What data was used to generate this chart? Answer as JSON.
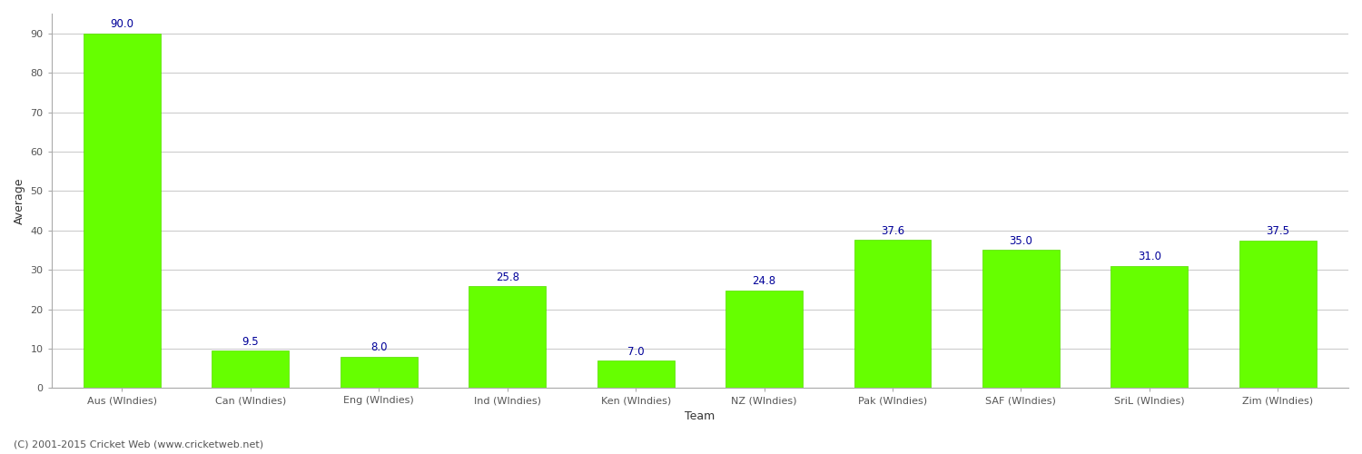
{
  "categories": [
    "Aus (WIndies)",
    "Can (WIndies)",
    "Eng (WIndies)",
    "Ind (WIndies)",
    "Ken (WIndies)",
    "NZ (WIndies)",
    "Pak (WIndies)",
    "SAF (WIndies)",
    "SriL (WIndies)",
    "Zim (WIndies)"
  ],
  "values": [
    90.0,
    9.5,
    8.0,
    25.8,
    7.0,
    24.8,
    37.6,
    35.0,
    31.0,
    37.5
  ],
  "bar_color": "#66ff00",
  "bar_edge_color": "#55dd00",
  "xlabel": "Team",
  "ylabel": "Average",
  "ylim": [
    0,
    95
  ],
  "yticks": [
    0,
    10,
    20,
    30,
    40,
    50,
    60,
    70,
    80,
    90
  ],
  "label_color": "#000099",
  "label_fontsize": 8.5,
  "axis_label_fontsize": 9,
  "tick_fontsize": 8,
  "grid_color": "#cccccc",
  "background_color": "#ffffff",
  "footer_text": "(C) 2001-2015 Cricket Web (www.cricketweb.net)",
  "footer_fontsize": 8,
  "footer_color": "#555555"
}
